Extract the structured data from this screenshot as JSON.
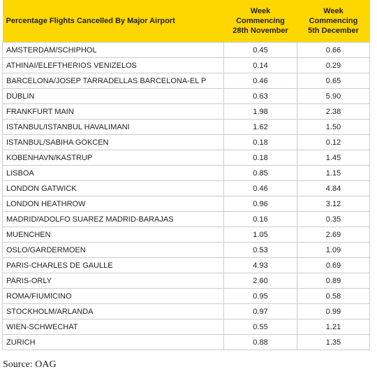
{
  "table": {
    "header": [
      "Percentage Flights Cancelled By Major Airport",
      "Week Commencing 28th November",
      "Week Commencing 5th December"
    ],
    "rows": [
      [
        "AMSTERDAM/SCHIPHOL",
        "0.45",
        "0.66"
      ],
      [
        "ATHINAI/ELEFTHERIOS VENIZELOS",
        "0.14",
        "0.29"
      ],
      [
        "BARCELONA/JOSEP TARRADELLAS BARCELONA-EL P",
        "0.46",
        "0.65"
      ],
      [
        "DUBLIN",
        "0.63",
        "5.90"
      ],
      [
        "FRANKFURT MAIN",
        "1.98",
        "2.38"
      ],
      [
        "ISTANBUL/ISTANBUL HAVALIMANI",
        "1.62",
        "1.50"
      ],
      [
        "ISTANBUL/SABIHA GOKCEN",
        "0.18",
        "0.12"
      ],
      [
        "KOBENHAVN/KASTRUP",
        "0.18",
        "1.45"
      ],
      [
        "LISBOA",
        "0.85",
        "1.15"
      ],
      [
        "LONDON GATWICK",
        "0.46",
        "4.84"
      ],
      [
        "LONDON HEATHROW",
        "0.96",
        "3.12"
      ],
      [
        "MADRID/ADOLFO SUAREZ MADRID-BARAJAS",
        "0.16",
        "0.35"
      ],
      [
        "MUENCHEN",
        "1.05",
        "2.69"
      ],
      [
        "OSLO/GARDERMOEN",
        "0.53",
        "1.09"
      ],
      [
        "PARIS-CHARLES DE GAULLE",
        "4.93",
        "0.69"
      ],
      [
        "PARIS-ORLY",
        "2.60",
        "0.89"
      ],
      [
        "ROMA/FIUMICINO",
        "0.95",
        "0.58"
      ],
      [
        "STOCKHOLM/ARLANDA",
        "0.97",
        "0.99"
      ],
      [
        "WIEN-SCHWECHAT",
        "0.55",
        "1.21"
      ],
      [
        "ZURICH",
        "0.88",
        "1.35"
      ]
    ]
  },
  "source": "Source: OAG"
}
